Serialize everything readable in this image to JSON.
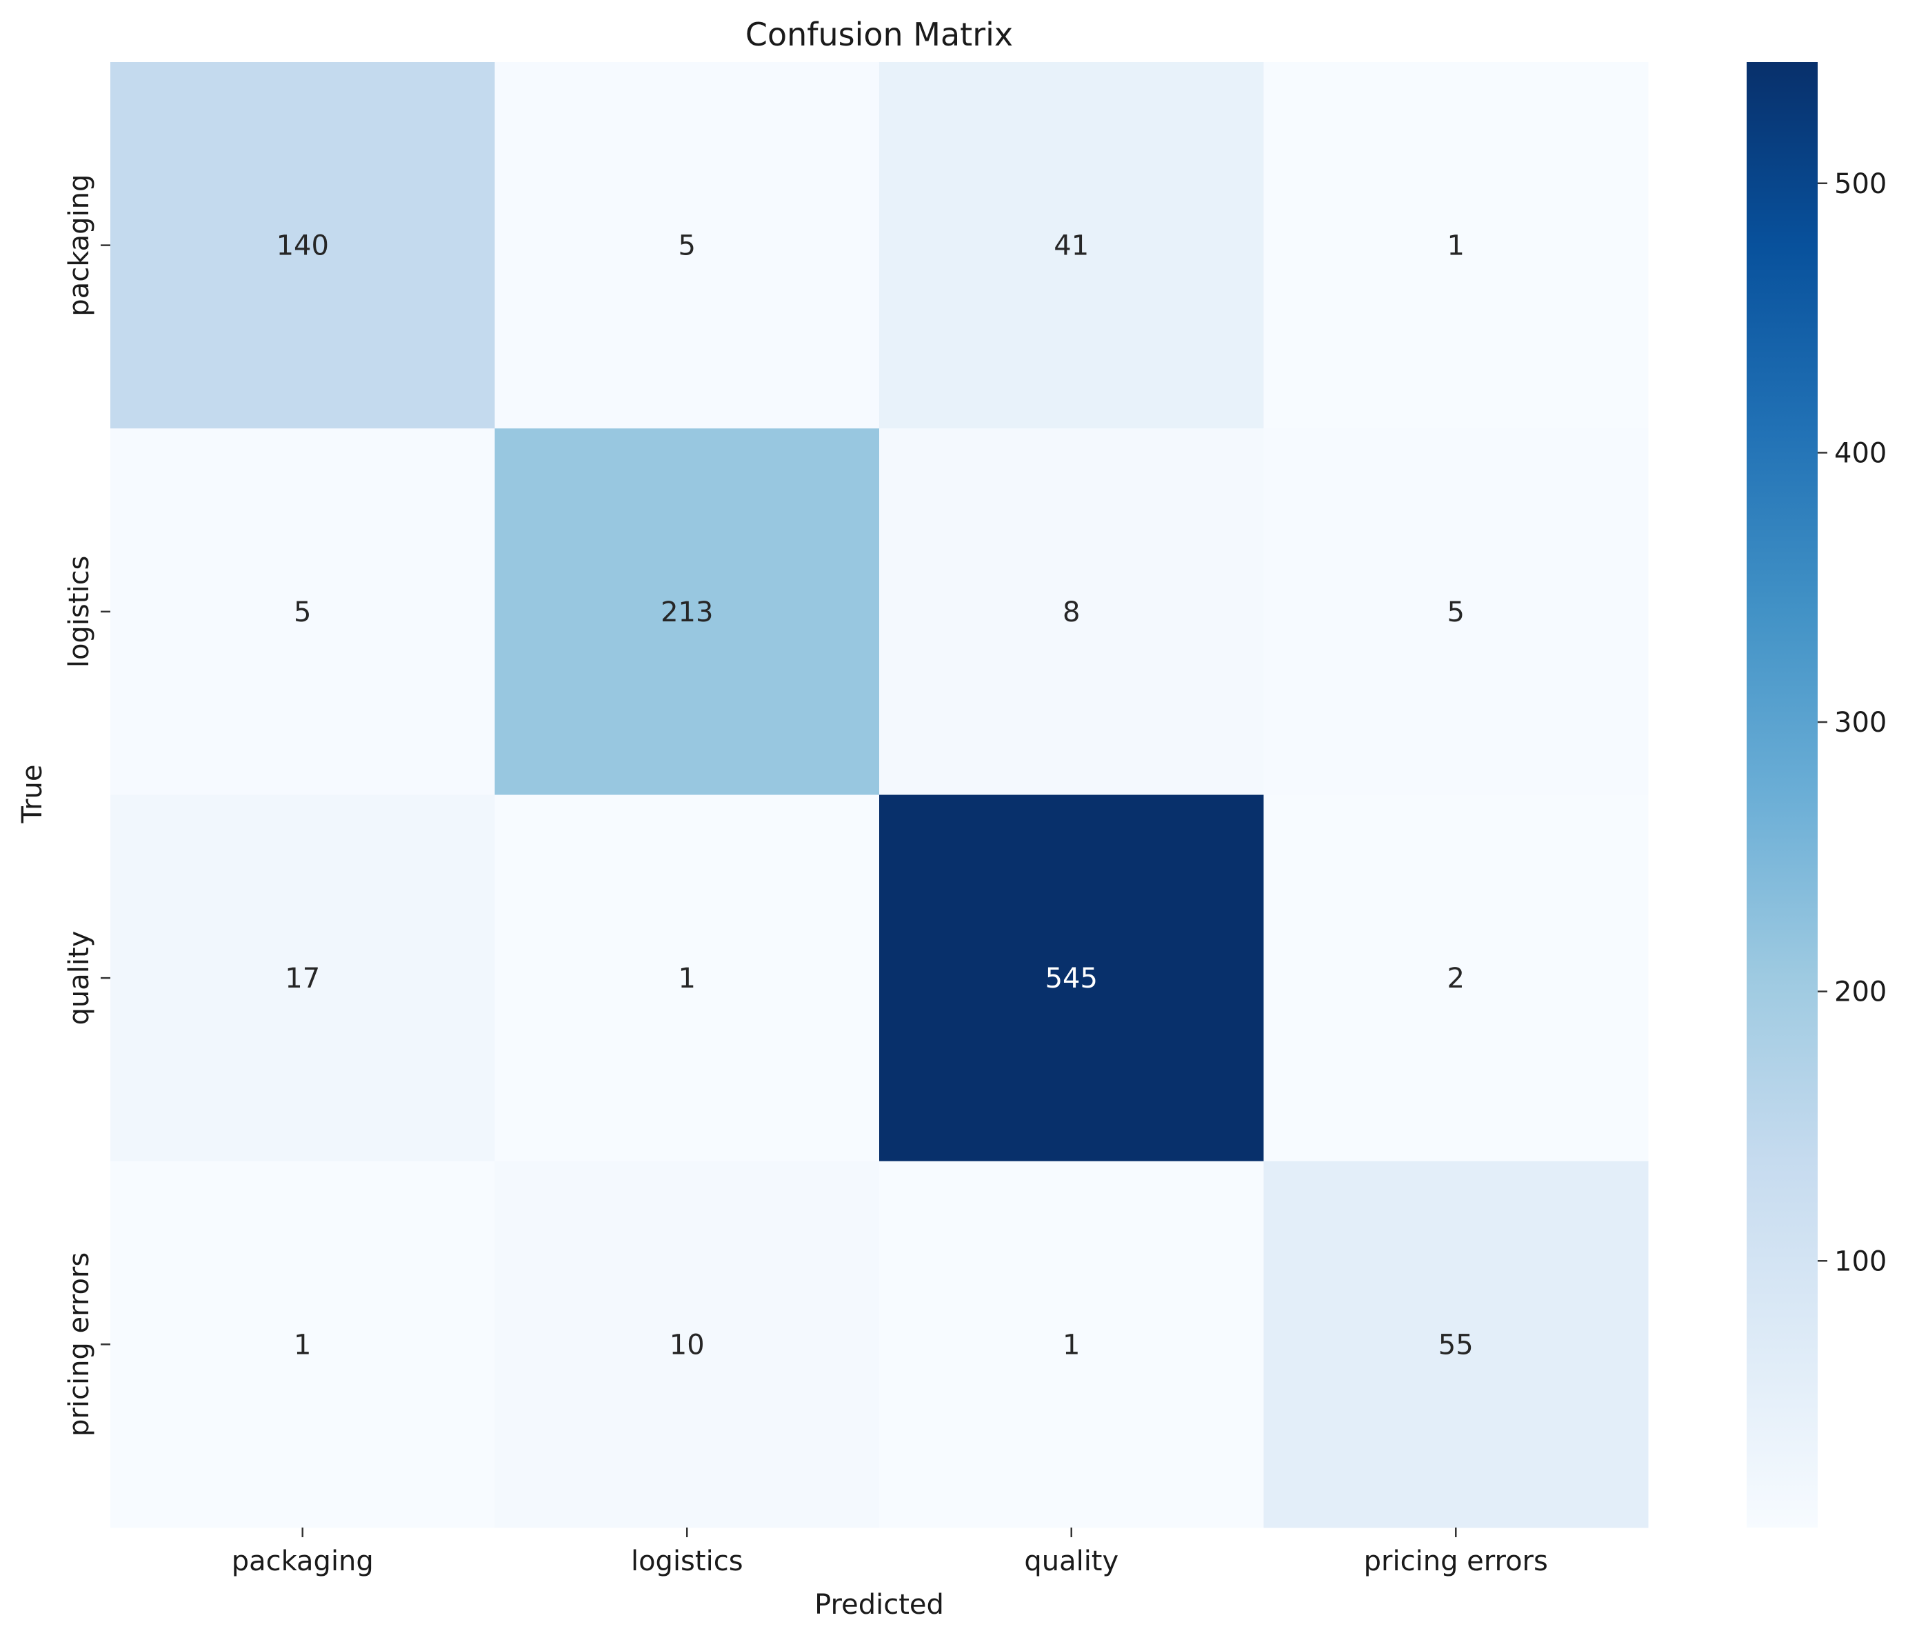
{
  "chart_data": {
    "type": "heatmap",
    "title": "Confusion Matrix",
    "xlabel": "Predicted",
    "ylabel": "True",
    "x_categories": [
      "packaging",
      "logistics",
      "quality",
      "pricing errors"
    ],
    "y_categories": [
      "packaging",
      "logistics",
      "quality",
      "pricing errors"
    ],
    "values": [
      [
        140,
        5,
        41,
        1
      ],
      [
        5,
        213,
        8,
        5
      ],
      [
        17,
        1,
        545,
        2
      ],
      [
        1,
        10,
        1,
        55
      ]
    ],
    "colormap": "Blues",
    "color_range": [
      1,
      545
    ],
    "colorbar_ticks": [
      100,
      200,
      300,
      400,
      500
    ],
    "colors": {
      "low": "#f7fbff",
      "high": "#08306b",
      "text_dark": "#262626",
      "text_light": "#ffffff"
    }
  }
}
